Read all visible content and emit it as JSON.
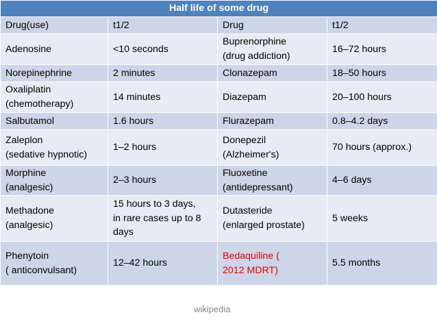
{
  "title": "Half life of some drug",
  "headers": [
    "Drug(use)",
    "t1/2",
    "Drug",
    "t1/2"
  ],
  "rows": [
    [
      [
        "Adenosine"
      ],
      [
        "<10 seconds"
      ],
      [
        "Buprenorphine",
        "(drug addiction)"
      ],
      [
        "16–72 hours"
      ]
    ],
    [
      [
        "Norepinephrine"
      ],
      [
        "2 minutes"
      ],
      [
        "Clonazepam"
      ],
      [
        "18–50 hours"
      ]
    ],
    [
      [
        "Oxaliplatin",
        "(chemotherapy)"
      ],
      [
        "14 minutes"
      ],
      [
        "Diazepam"
      ],
      [
        "20–100 hours"
      ]
    ],
    [
      [
        "Salbutamol"
      ],
      [
        "1.6 hours"
      ],
      [
        "Flurazepam"
      ],
      [
        "0.8–4.2 days"
      ]
    ],
    [
      [
        "Zaleplon",
        "(sedative hypnotic)"
      ],
      [
        "1–2 hours"
      ],
      [
        "Donepezil",
        "(Alzheimer's)"
      ],
      [
        "70 hours (approx.)"
      ]
    ],
    [
      [
        "Morphine",
        "(analgesic)"
      ],
      [
        "2–3 hours"
      ],
      [
        "Fluoxetine",
        "(antidepressant)"
      ],
      [
        "4–6 days"
      ]
    ],
    [
      [
        "Methadone",
        "(analgesic)"
      ],
      [
        "15 hours to 3 days,",
        "in rare cases up to 8",
        "days"
      ],
      [
        "Dutasteride",
        "(enlarged prostate)"
      ],
      [
        "5 weeks"
      ]
    ],
    [
      [
        "Phenytoin",
        "( anticonvulsant)"
      ],
      [
        "12–42 hours"
      ],
      [
        "Bedaquiline (",
        "2012 MDRT)"
      ],
      [
        "5.5 months"
      ]
    ]
  ],
  "highlight_cell": {
    "row": 7,
    "col": 2,
    "color": "#e00000"
  },
  "colors": {
    "title_bg": "#4f81bd",
    "row_dark": "#cdd5e8",
    "row_light": "#e8ebf3"
  },
  "watermark": "wikipedia"
}
